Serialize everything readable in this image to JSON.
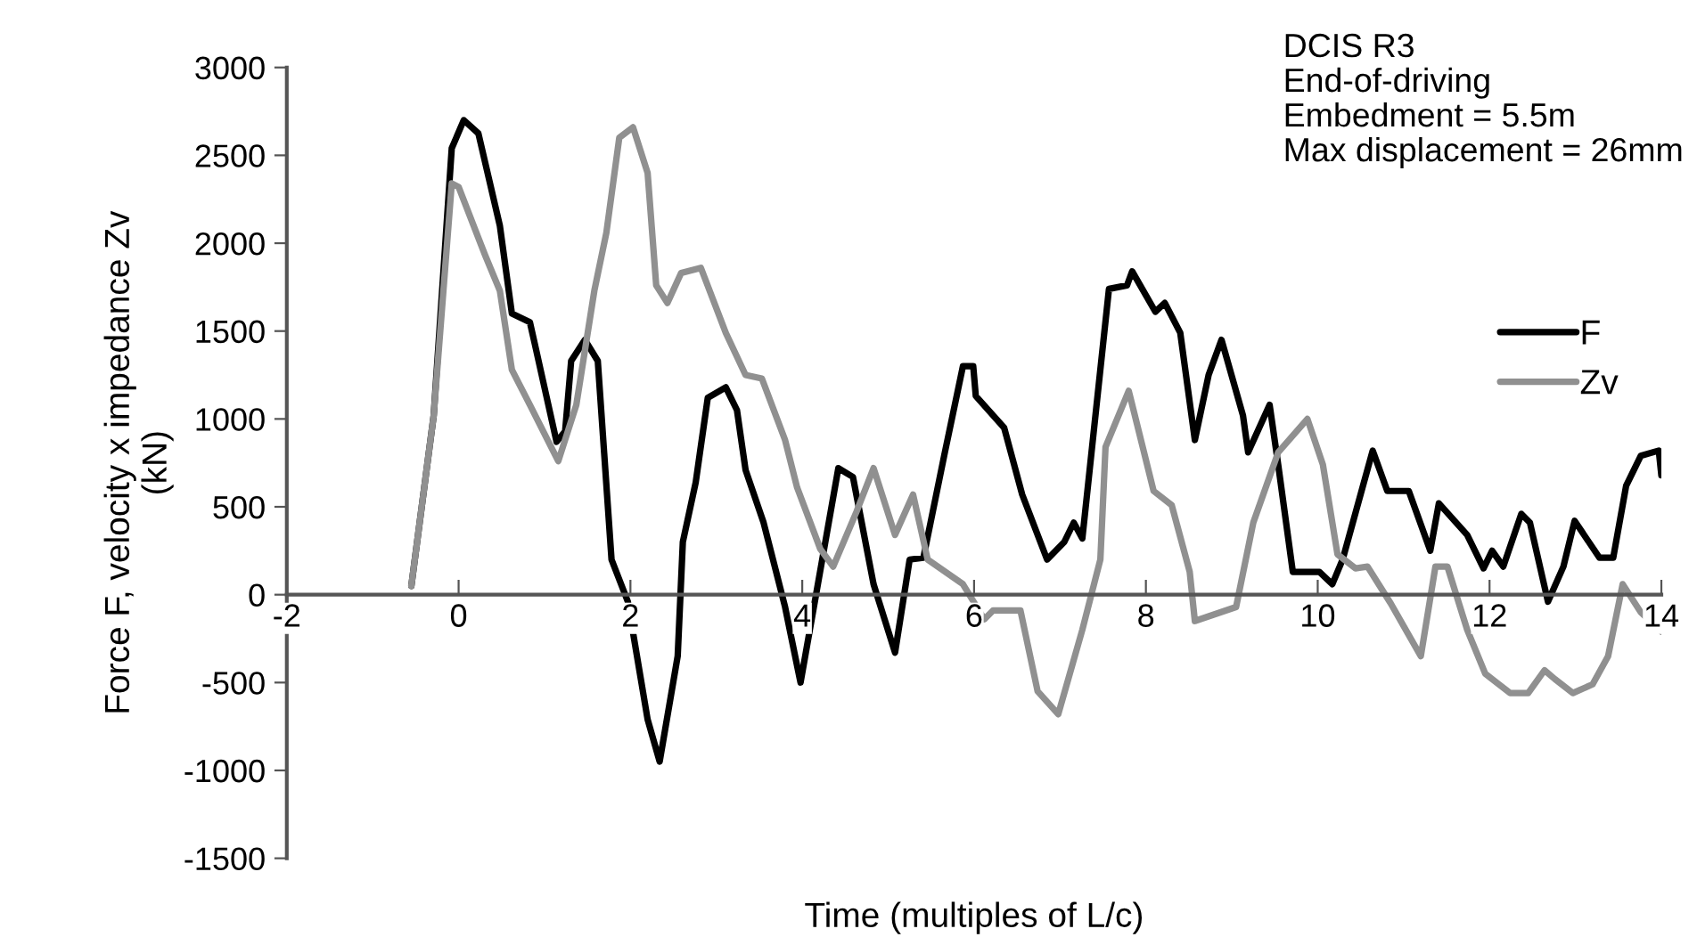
{
  "chart_data": {
    "type": "line",
    "xlabel": "Time (multiples of L/c)",
    "ylabel": "Force F, velocity x impedance Zv\n(kN)",
    "annotations": [
      "DCIS R3",
      "End-of-driving",
      "Embedment = 5.5m",
      "Max displacement = 26mm"
    ],
    "xlim": [
      -2,
      14
    ],
    "xticks": [
      -2,
      0,
      2,
      4,
      6,
      8,
      10,
      12,
      14
    ],
    "ylim": [
      -1500,
      3000
    ],
    "yticks": [
      -1500,
      -1000,
      -500,
      0,
      500,
      1000,
      1500,
      2000,
      2500,
      3000
    ],
    "grid": false,
    "legend": "right",
    "marker": "none",
    "line_style": "solid",
    "series": [
      {
        "name": "F",
        "color": "#000000",
        "x": [
          -0.55,
          -0.29,
          -0.08,
          0.06,
          0.23,
          0.48,
          0.62,
          0.83,
          0.89,
          1.14,
          1.24,
          1.31,
          1.47,
          1.62,
          1.78,
          1.97,
          2.2,
          2.34,
          2.55,
          2.61,
          2.76,
          2.9,
          3.11,
          3.24,
          3.34,
          3.55,
          3.8,
          3.98,
          4.42,
          4.59,
          4.83,
          5.08,
          5.25,
          5.41,
          5.66,
          5.87,
          5.99,
          6.02,
          6.35,
          6.56,
          6.85,
          7.05,
          7.16,
          7.26,
          7.57,
          7.78,
          7.84,
          8.11,
          8.22,
          8.4,
          8.57,
          8.73,
          8.88,
          9.13,
          9.19,
          9.44,
          9.54,
          9.71,
          10.02,
          10.17,
          10.29,
          10.64,
          10.81,
          11.06,
          11.31,
          11.41,
          11.74,
          11.93,
          12.03,
          12.16,
          12.37,
          12.47,
          12.68,
          12.86,
          12.99,
          13.28,
          13.44,
          13.59,
          13.76,
          13.97,
          14
        ],
        "values": [
          50,
          1020,
          2540,
          2700,
          2625,
          2100,
          1600,
          1550,
          1420,
          870,
          930,
          1330,
          1450,
          1330,
          200,
          -40,
          -710,
          -950,
          -350,
          300,
          640,
          1120,
          1180,
          1050,
          710,
          410,
          -70,
          -500,
          720,
          670,
          60,
          -330,
          200,
          210,
          810,
          1300,
          1300,
          1130,
          950,
          570,
          200,
          300,
          410,
          320,
          1740,
          1760,
          1840,
          1610,
          1660,
          1490,
          880,
          1250,
          1450,
          1020,
          810,
          1080,
          740,
          130,
          130,
          60,
          200,
          820,
          590,
          590,
          250,
          520,
          340,
          150,
          250,
          160,
          460,
          410,
          -40,
          160,
          420,
          210,
          210,
          620,
          790,
          820,
          680
        ]
      },
      {
        "name": "Zv",
        "color": "#909090",
        "x": [
          -0.55,
          -0.29,
          -0.08,
          0.0,
          0.23,
          0.31,
          0.48,
          0.62,
          0.83,
          1.16,
          1.37,
          1.58,
          1.72,
          1.87,
          2.03,
          2.2,
          2.3,
          2.43,
          2.59,
          2.82,
          3.11,
          3.34,
          3.53,
          3.8,
          3.94,
          4.21,
          4.36,
          4.63,
          4.83,
          5.08,
          5.29,
          5.46,
          5.87,
          6.12,
          6.22,
          6.54,
          6.74,
          6.98,
          7.26,
          7.47,
          7.53,
          7.8,
          8.09,
          8.3,
          8.51,
          8.57,
          9.05,
          9.25,
          9.54,
          9.88,
          10.06,
          10.23,
          10.44,
          10.58,
          10.85,
          11.2,
          11.37,
          11.51,
          11.74,
          11.95,
          12.24,
          12.45,
          12.64,
          12.76,
          12.97,
          13.2,
          13.38,
          13.55,
          13.76,
          14
        ],
        "values": [
          50,
          1020,
          2340,
          2320,
          2030,
          1930,
          1730,
          1280,
          1080,
          760,
          1080,
          1730,
          2060,
          2600,
          2660,
          2400,
          1760,
          1660,
          1830,
          1860,
          1490,
          1250,
          1230,
          880,
          610,
          260,
          160,
          470,
          720,
          340,
          570,
          200,
          60,
          -140,
          -90,
          -90,
          -550,
          -680,
          -200,
          200,
          840,
          1160,
          590,
          510,
          130,
          -150,
          -70,
          410,
          810,
          1000,
          740,
          230,
          150,
          160,
          -50,
          -350,
          160,
          160,
          -200,
          -450,
          -560,
          -560,
          -430,
          -480,
          -560,
          -510,
          -350,
          60,
          -100,
          -210
        ]
      }
    ]
  }
}
